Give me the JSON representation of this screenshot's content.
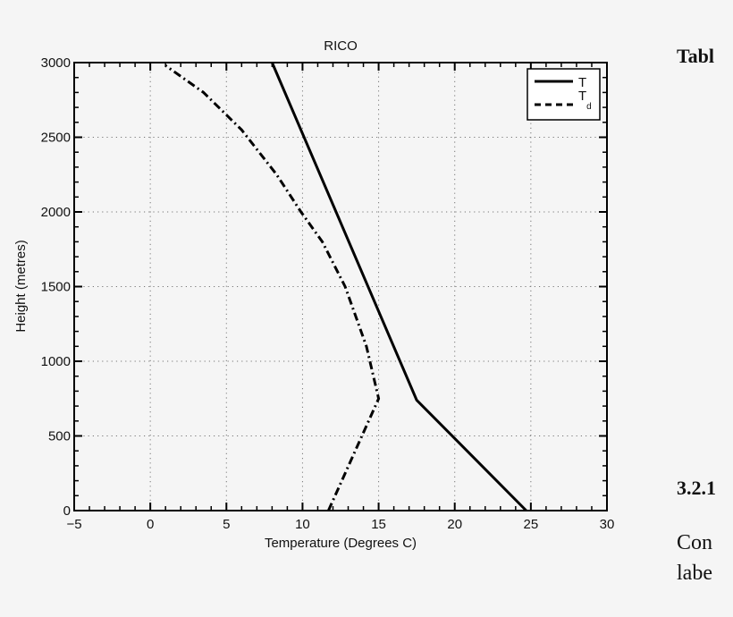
{
  "chart_data": {
    "type": "line",
    "title": "RICO",
    "xlabel": "Temperature (Degrees C)",
    "ylabel": "Height (metres)",
    "xlim": [
      -5,
      30
    ],
    "ylim": [
      0,
      3000
    ],
    "xticks": [
      "−5",
      "0",
      "5",
      "10",
      "15",
      "20",
      "25",
      "30"
    ],
    "yticks": [
      "0",
      "500",
      "1000",
      "1500",
      "2000",
      "2500",
      "3000"
    ],
    "grid": "dotted",
    "legend_position": "upper right",
    "series": [
      {
        "name": "T",
        "style": "solid",
        "x": [
          24.7,
          17.5,
          8.0
        ],
        "y": [
          0,
          740,
          3000
        ]
      },
      {
        "name": "T_d",
        "style": "dash-dot",
        "x": [
          11.7,
          15.0,
          14.2,
          12.8,
          11.3,
          9.9,
          8.3,
          6.0,
          3.5,
          1.0
        ],
        "y": [
          0,
          750,
          1100,
          1500,
          1800,
          2000,
          2250,
          2550,
          2800,
          2980
        ]
      }
    ]
  },
  "legend": {
    "items": [
      {
        "label": "T",
        "sub": ""
      },
      {
        "label": "T",
        "sub": "d"
      }
    ]
  },
  "side_text": {
    "table_fragment": "Tabl",
    "section_fragment": "3.2.1",
    "para_fragment_1": "Con",
    "para_fragment_2": "labe"
  }
}
